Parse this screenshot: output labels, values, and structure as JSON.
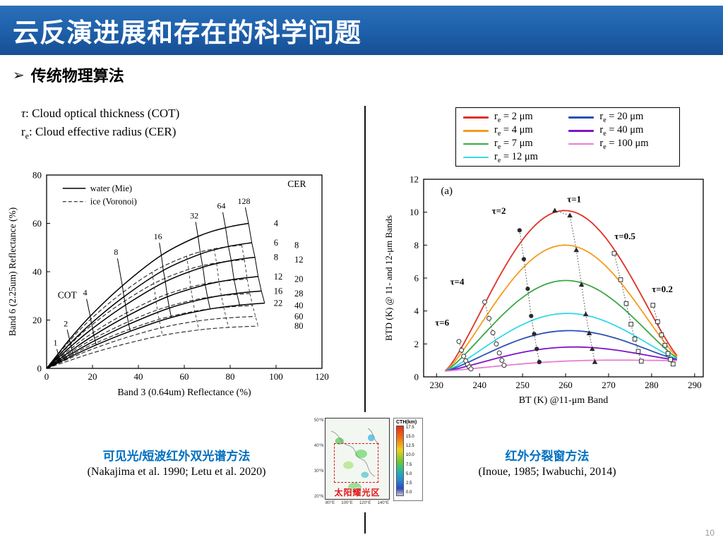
{
  "slide": {
    "title": "云反演进展和存在的科学问题",
    "bullet_marker": "➢",
    "bullet": "传统物理算法",
    "page_number": "10"
  },
  "definitions": {
    "line1_symbol": "τ",
    "line1_rest": ": Cloud optical thickness (COT)",
    "line2_symbol": "r",
    "line2_sub": "e",
    "line2_rest": ": Cloud effective radius (CER)"
  },
  "left_panel": {
    "caption_method": "可见光/短波红外双光谱方法",
    "caption_ref": "(Nakajima et al. 1990; Letu et al. 2020)"
  },
  "right_panel": {
    "caption_method": "红外分裂窗方法",
    "caption_ref": "(Inoue, 1985; Iwabuchi, 2014)"
  },
  "map_inset": {
    "colorbar_title": "CTH(km)",
    "colorbar_ticks": [
      "17.5",
      "15.0",
      "12.5",
      "10.0",
      "7.5",
      "5.0",
      "2.5",
      "0.0"
    ],
    "label": "太阳耀光区",
    "lat_ticks": [
      "50°N",
      "40°N",
      "30°N",
      "20°N"
    ],
    "lon_ticks": [
      "80°E",
      "100°E",
      "120°E",
      "140°E"
    ]
  },
  "chart_data": [
    {
      "id": "bispectral_nakajima",
      "type": "line",
      "xlabel": "Band 3 (0.64um) Reflectance (%)",
      "ylabel": "Band 6 (2.25um) Reflectance (%)",
      "xlim": [
        0,
        120
      ],
      "ylim": [
        0,
        80
      ],
      "xticks": [
        0,
        20,
        40,
        60,
        80,
        100,
        120
      ],
      "yticks": [
        0,
        20,
        40,
        60,
        80
      ],
      "legend": [
        {
          "label": "water (Mie)",
          "style": "solid"
        },
        {
          "label": "ice (Voronoi)",
          "style": "dashed"
        }
      ],
      "cer_header": "CER",
      "cot_label": "COT",
      "cot_label_pos": [
        9,
        29
      ],
      "cot_values": [
        1,
        2,
        4,
        8,
        16,
        32,
        64,
        128
      ],
      "cot_growth": [
        0,
        0.1,
        0.2,
        0.36,
        0.57,
        0.78,
        0.91,
        0.97,
        1.0
      ],
      "water": {
        "cer": [
          4,
          6,
          8,
          12,
          16,
          22
        ],
        "x_nodes": [
          0,
          5,
          10,
          19,
          33,
          50,
          66,
          78,
          88
        ],
        "x_shift": 1.4,
        "y_max": [
          60,
          52,
          46,
          38,
          32,
          27
        ],
        "label_x": 99
      },
      "ice": {
        "cer": [
          8,
          12,
          20,
          28,
          40,
          60,
          80
        ],
        "x_nodes": [
          0,
          4.5,
          9,
          17,
          30,
          46,
          61,
          73,
          85
        ],
        "x_shift": 1.2,
        "y_max": [
          51,
          45,
          37,
          31,
          26,
          21.5,
          17.5
        ],
        "label_x": 108
      },
      "cer_header_pos": [
        105,
        75
      ]
    },
    {
      "id": "split_window_btd",
      "type": "line",
      "panel_label": "(a)",
      "xlabel": "BT (K) @11-μm Band",
      "ylabel": "BTD (K) @ 11- and 12-μm Bands",
      "xlim": [
        227,
        292
      ],
      "ylim": [
        0,
        12
      ],
      "xticks": [
        230,
        240,
        250,
        260,
        270,
        280,
        290
      ],
      "yticks": [
        0,
        2,
        4,
        6,
        8,
        10,
        12
      ],
      "curve_x_start": 232,
      "curve_x_end": 287,
      "y_left_end": 0.35,
      "y_right_end": 1.0,
      "legend_unit": "μm",
      "series": [
        {
          "re": 2,
          "color": "#e03127",
          "peak": 10.1
        },
        {
          "re": 4,
          "color": "#f59c1c",
          "peak": 8.0
        },
        {
          "re": 7,
          "color": "#3aa845",
          "peak": 5.85
        },
        {
          "re": 12,
          "color": "#35d8e8",
          "peak": 3.85
        },
        {
          "re": 20,
          "color": "#2b50b5",
          "peak": 2.8
        },
        {
          "re": 40,
          "color": "#8013c9",
          "peak": 1.8
        },
        {
          "re": 100,
          "color": "#e77fd4",
          "peak": 0.95
        }
      ],
      "tau_lines": [
        {
          "label": "τ=6",
          "marker": "circle-open",
          "label_pos": [
            231.3,
            3.1
          ],
          "points": [
            [
              235.2,
              2.15
            ],
            [
              235.8,
              1.62
            ],
            [
              236.3,
              1.25
            ],
            [
              236.8,
              0.97
            ],
            [
              237.2,
              0.76
            ],
            [
              237.6,
              0.6
            ],
            [
              238.0,
              0.48
            ]
          ]
        },
        {
          "label": "τ=4",
          "marker": "circle-open",
          "label_pos": [
            234.8,
            5.6
          ],
          "points": [
            [
              241.2,
              4.55
            ],
            [
              242.2,
              3.55
            ],
            [
              243.1,
              2.68
            ],
            [
              243.9,
              2.0
            ],
            [
              244.6,
              1.45
            ],
            [
              245.2,
              1.0
            ],
            [
              245.7,
              0.7
            ]
          ]
        },
        {
          "label": "τ=2",
          "marker": "circle-filled",
          "label_pos": [
            244.5,
            9.9
          ],
          "points": [
            [
              249.3,
              8.9
            ],
            [
              250.3,
              7.15
            ],
            [
              251.2,
              5.35
            ],
            [
              252.0,
              3.7
            ],
            [
              252.7,
              2.6
            ],
            [
              253.3,
              1.7
            ],
            [
              253.9,
              0.9
            ]
          ]
        },
        {
          "label": "τ=1",
          "marker": "triangle-filled",
          "label_pos": [
            262.0,
            10.6
          ],
          "points": [
            [
              257.5,
              10.1
            ],
            [
              261.0,
              9.8
            ],
            [
              262.5,
              7.7
            ],
            [
              263.7,
              5.6
            ],
            [
              264.7,
              3.8
            ],
            [
              265.5,
              2.65
            ],
            [
              266.2,
              1.7
            ],
            [
              266.8,
              0.9
            ]
          ]
        },
        {
          "label": "τ=0.5",
          "marker": "square-open",
          "label_pos": [
            273.8,
            8.35
          ],
          "points": [
            [
              271.3,
              7.5
            ],
            [
              272.8,
              5.9
            ],
            [
              274.1,
              4.45
            ],
            [
              275.2,
              3.2
            ],
            [
              276.1,
              2.3
            ],
            [
              276.9,
              1.55
            ],
            [
              277.6,
              0.95
            ]
          ]
        },
        {
          "label": "τ=0.2",
          "marker": "square-open",
          "label_pos": [
            282.5,
            5.15
          ],
          "points": [
            [
              280.3,
              4.35
            ],
            [
              281.4,
              3.35
            ],
            [
              282.3,
              2.55
            ],
            [
              283.1,
              1.92
            ],
            [
              283.8,
              1.42
            ],
            [
              284.4,
              1.05
            ],
            [
              285.0,
              0.78
            ]
          ]
        }
      ]
    }
  ]
}
